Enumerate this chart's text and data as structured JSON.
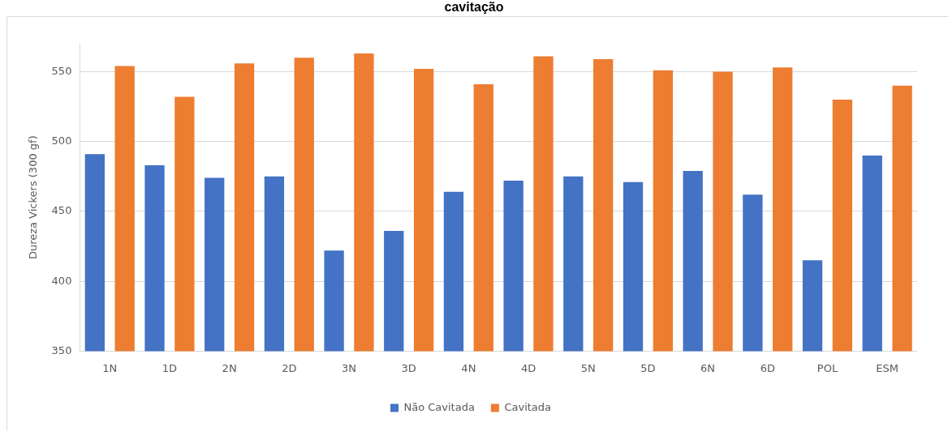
{
  "chart_data": {
    "type": "bar",
    "title": "cavitação",
    "ylabel": "Dureza Vickers (300 gf)",
    "categories": [
      "1N",
      "1D",
      "2N",
      "2D",
      "3N",
      "3D",
      "4N",
      "4D",
      "5N",
      "5D",
      "6N",
      "6D",
      "POL",
      "ESM"
    ],
    "series": [
      {
        "name": "Não Cavitada",
        "color": "#4472c4",
        "values": [
          491,
          483,
          474,
          475,
          422,
          436,
          464,
          472,
          475,
          471,
          479,
          462,
          415,
          490
        ]
      },
      {
        "name": "Cavitada",
        "color": "#ed7d31",
        "values": [
          554,
          532,
          556,
          560,
          563,
          552,
          541,
          561,
          559,
          551,
          550,
          553,
          530,
          540
        ]
      }
    ],
    "ylim": [
      350,
      570
    ],
    "yticks": [
      350,
      400,
      450,
      500,
      550
    ],
    "grid": "y",
    "legend": "bottom"
  }
}
